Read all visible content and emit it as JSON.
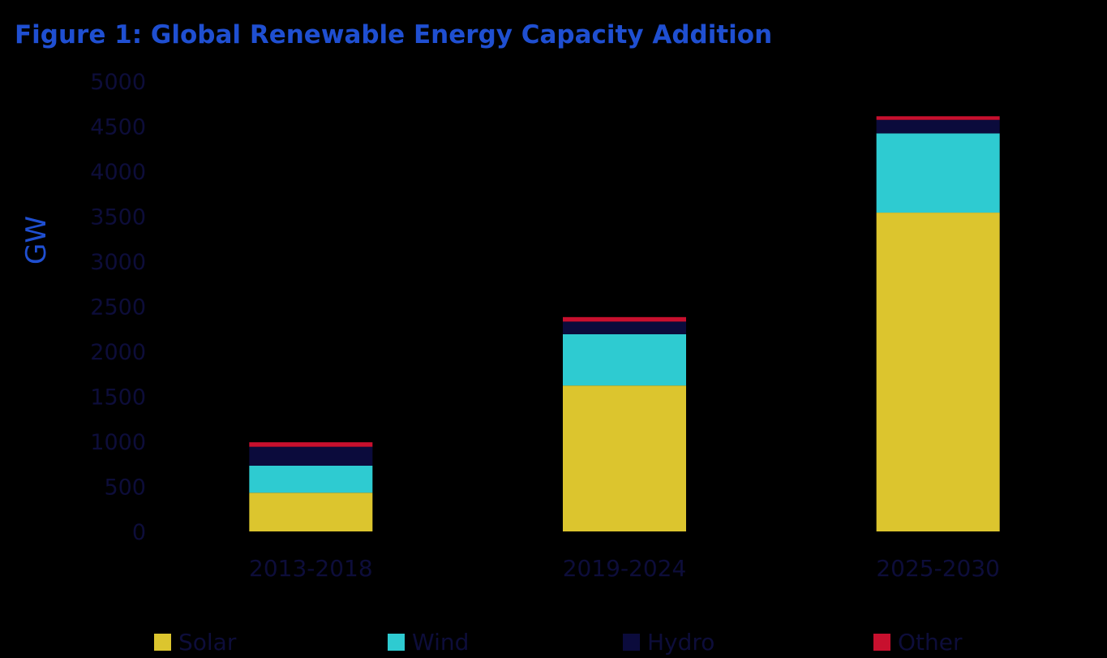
{
  "chart_data": {
    "type": "bar",
    "stacked": true,
    "title": "Figure 1: Global Renewable Energy Capacity Addition",
    "xlabel": "",
    "ylabel": "GW",
    "ylim": [
      0,
      5000
    ],
    "yticks": [
      0,
      500,
      1000,
      1500,
      2000,
      2500,
      3000,
      3500,
      4000,
      4500,
      5000
    ],
    "grid": false,
    "legend_position": "bottom",
    "categories": [
      "2013-2018",
      "2019-2024",
      "2025-2030"
    ],
    "series": [
      {
        "name": "Solar",
        "color": "#dcc52e",
        "values": [
          430,
          1620,
          3540
        ]
      },
      {
        "name": "Wind",
        "color": "#2ecbd1",
        "values": [
          300,
          570,
          880
        ]
      },
      {
        "name": "Hydro",
        "color": "#0b0b3c",
        "values": [
          210,
          140,
          150
        ]
      },
      {
        "name": "Other",
        "color": "#c8102e",
        "values": [
          50,
          50,
          40
        ]
      }
    ]
  }
}
